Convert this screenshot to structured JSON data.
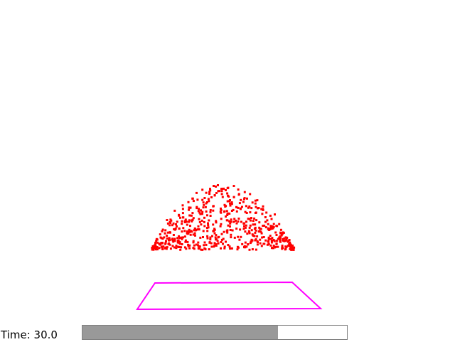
{
  "time": {
    "prefix": "Time:",
    "value": "30.0"
  },
  "progress": {
    "fraction": 0.74,
    "fill_color": "#999999",
    "track_color": "#ffffff",
    "border_color": "#808080"
  },
  "scene": {
    "particle_color": "#ff0000",
    "floor_color": "#ff00ff",
    "floor_shape": "quadrilateral",
    "particle_cloud_shape": "mound"
  }
}
